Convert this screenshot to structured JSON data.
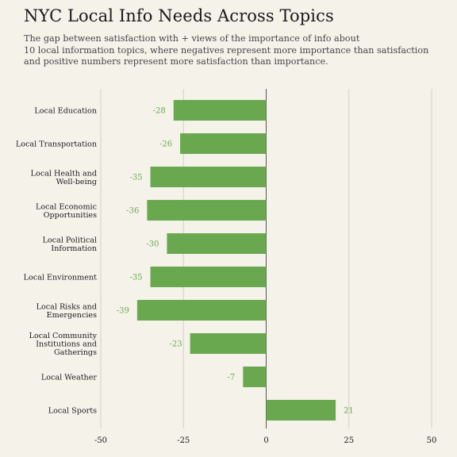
{
  "title": "NYC Local Info Needs Across Topics",
  "subtitle_lines": [
    "The gap between satisfaction with + views of the importance of info about",
    "10 local information topics, where negatives represent more importance than satisfaction",
    "and positive numbers represent more satisfaction than importance."
  ],
  "chart_data": {
    "type": "bar",
    "orientation": "horizontal",
    "categories": [
      [
        "Local Education"
      ],
      [
        "Local Transportation"
      ],
      [
        "Local Health and",
        "Well-being"
      ],
      [
        "Local Economic",
        "Opportunities"
      ],
      [
        "Local Political",
        "Information"
      ],
      [
        "Local Environment"
      ],
      [
        "Local Risks and",
        "Emergencies"
      ],
      [
        "Local Community",
        "Institutions and",
        "Gatherings"
      ],
      [
        "Local Weather"
      ],
      [
        "Local Sports"
      ]
    ],
    "values": [
      -28,
      -26,
      -35,
      -36,
      -30,
      -35,
      -39,
      -23,
      -7,
      21
    ],
    "xlim": [
      -50,
      50
    ],
    "xticks": [
      -50,
      -25,
      0,
      25,
      50
    ],
    "grid": true,
    "bar_color": "#6aa84f",
    "label_color": "#6aa84f"
  }
}
